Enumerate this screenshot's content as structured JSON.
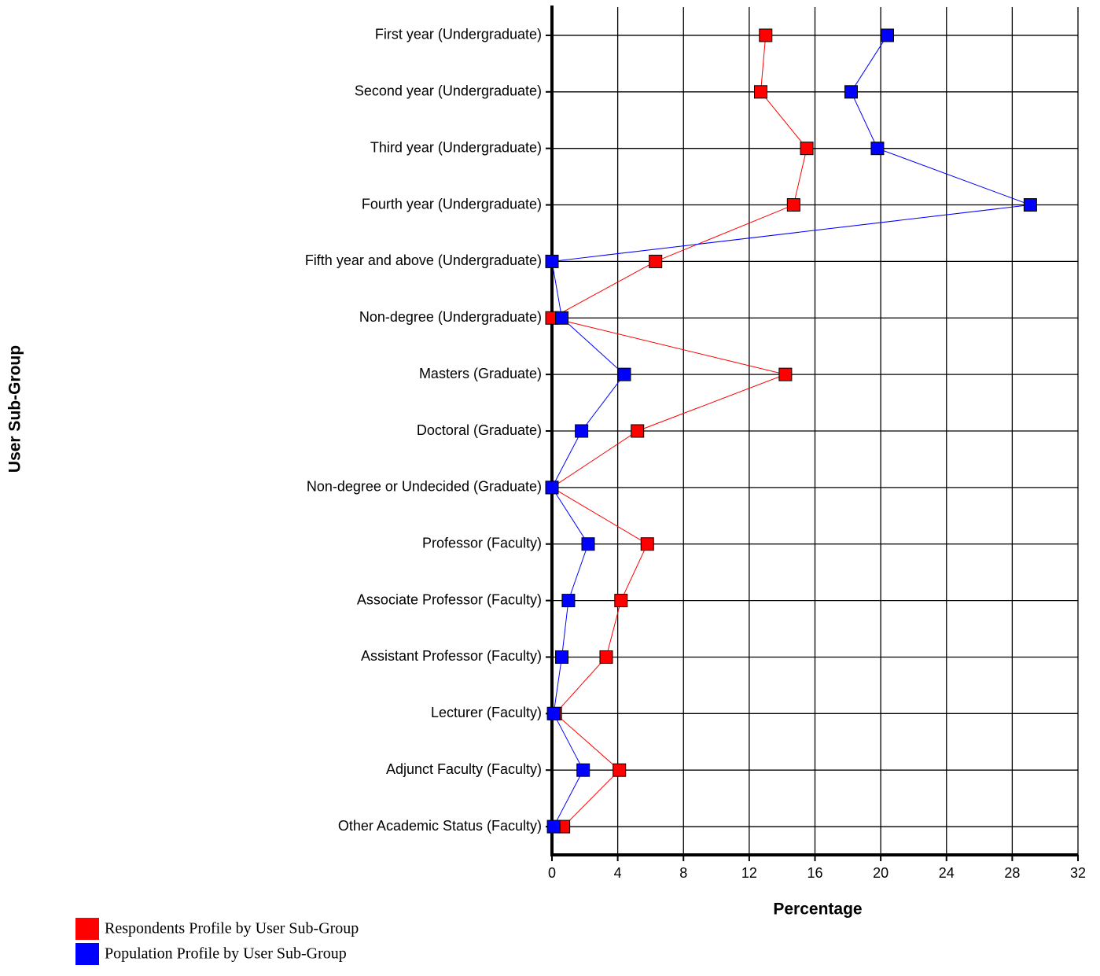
{
  "chart_data": {
    "type": "line",
    "orientation": "horizontal",
    "x_label": "Percentage",
    "y_label": "User Sub-Group",
    "categories": [
      "First year (Undergraduate)",
      "Second year (Undergraduate)",
      "Third year (Undergraduate)",
      "Fourth year (Undergraduate)",
      "Fifth year and above (Undergraduate)",
      "Non-degree (Undergraduate)",
      "Masters (Graduate)",
      "Doctoral (Graduate)",
      "Non-degree or Undecided (Graduate)",
      "Professor (Faculty)",
      "Associate Professor (Faculty)",
      "Assistant Professor (Faculty)",
      "Lecturer (Faculty)",
      "Adjunct Faculty (Faculty)",
      "Other Academic Status (Faculty)"
    ],
    "series": [
      {
        "name": "Respondents Profile by User Sub-Group",
        "color": "#ff0000",
        "values": [
          13.0,
          12.7,
          15.5,
          14.7,
          6.3,
          0,
          14.2,
          5.2,
          0,
          5.8,
          4.2,
          3.3,
          0.2,
          4.1,
          0.7
        ]
      },
      {
        "name": "Population Profile by User Sub-Group",
        "color": "#0000ff",
        "values": [
          20.4,
          18.2,
          19.8,
          29.1,
          0,
          0.6,
          4.4,
          1.8,
          0,
          2.2,
          1.0,
          0.6,
          0.1,
          1.9,
          0.1
        ]
      }
    ],
    "xlim": [
      0,
      32
    ],
    "xticks": [
      0,
      4,
      8,
      12,
      16,
      20,
      24,
      28,
      32
    ],
    "grid": true,
    "legend": "bottom-left"
  }
}
